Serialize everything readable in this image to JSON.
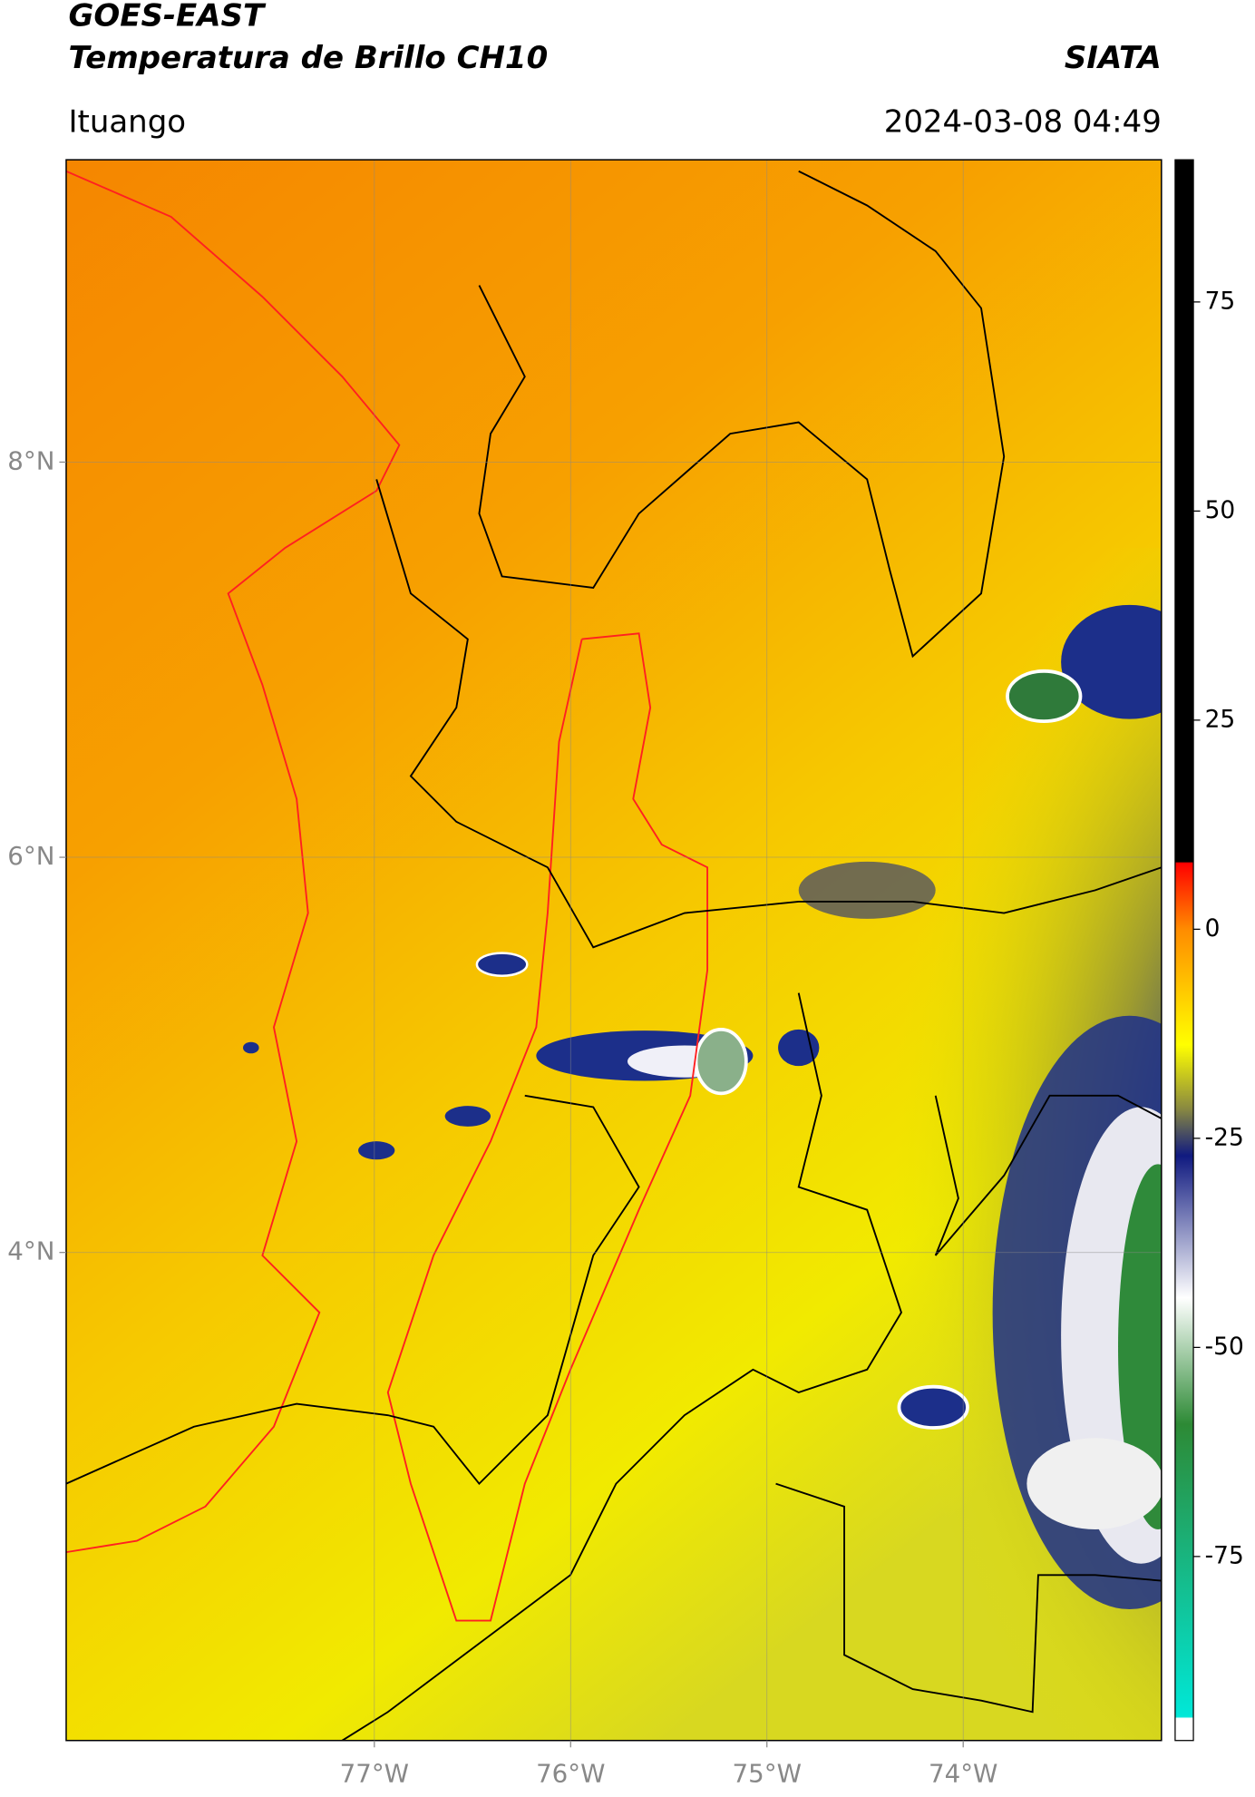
{
  "header": {
    "title": "GOES-EAST",
    "subtitle": "Temperatura de Brillo CH10",
    "source": "SIATA",
    "location": "Ituango",
    "datetime": "2024-03-08 04:49"
  },
  "map": {
    "xlim": [
      -78.57,
      -72.99
    ],
    "ylim": [
      1.53,
      9.53
    ],
    "xticks": [
      {
        "value": -77,
        "label": "77°W"
      },
      {
        "value": -76,
        "label": "76°W"
      },
      {
        "value": -75,
        "label": "75°W"
      },
      {
        "value": -74,
        "label": "74°W"
      }
    ],
    "yticks": [
      {
        "value": 8,
        "label": "8°N"
      },
      {
        "value": 6,
        "label": "6°N"
      },
      {
        "value": 4,
        "label": "4°N"
      }
    ],
    "grid": true
  },
  "colorbar": {
    "lim": [
      -97,
      92
    ],
    "ticks": [
      75,
      50,
      25,
      0,
      -25,
      -50,
      -75
    ]
  }
}
